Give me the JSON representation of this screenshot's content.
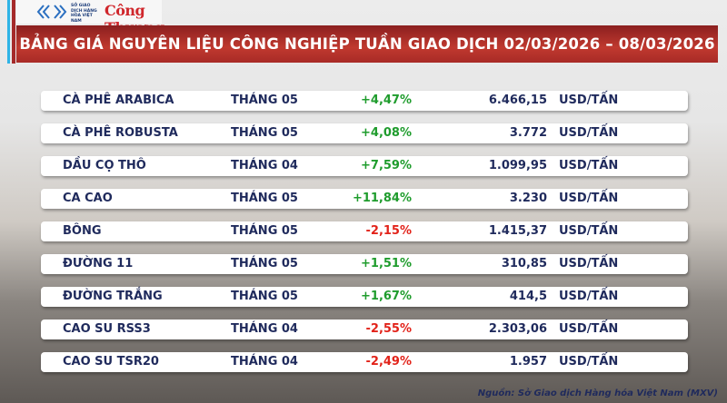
{
  "logo": {
    "exchange_name": "SỞ GIAO DỊCH HÀNG HÓA VIỆT NAM",
    "brand": "Công Thương"
  },
  "title": "BẢNG GIÁ NGUYÊN LIỆU CÔNG NGHIỆP TUẦN GIAO DỊCH 02/03/2026 – 08/03/2026",
  "colors": {
    "up": "#1f9c2d",
    "down": "#e2231a",
    "banner": "#b3302b",
    "text": "#1f2a5c"
  },
  "rows": [
    {
      "name": "CÀ PHÊ ARABICA",
      "month": "THÁNG 05",
      "change": "+4,47%",
      "direction": "up",
      "price": "6.466,15",
      "unit": "USD/TẤN"
    },
    {
      "name": "CÀ PHÊ ROBUSTA",
      "month": "THÁNG 05",
      "change": "+4,08%",
      "direction": "up",
      "price": "3.772",
      "unit": "USD/TẤN"
    },
    {
      "name": "DẦU CỌ THÔ",
      "month": "THÁNG 04",
      "change": "+7,59%",
      "direction": "up",
      "price": "1.099,95",
      "unit": "USD/TẤN"
    },
    {
      "name": "CA CAO",
      "month": "THÁNG 05",
      "change": "+11,84%",
      "direction": "up",
      "price": "3.230",
      "unit": "USD/TẤN"
    },
    {
      "name": "BÔNG",
      "month": "THÁNG 05",
      "change": "-2,15%",
      "direction": "down",
      "price": "1.415,37",
      "unit": "USD/TẤN"
    },
    {
      "name": "ĐƯỜNG 11",
      "month": "THÁNG 05",
      "change": "+1,51%",
      "direction": "up",
      "price": "310,85",
      "unit": "USD/TẤN"
    },
    {
      "name": "ĐƯỜNG TRẮNG",
      "month": "THÁNG 05",
      "change": "+1,67%",
      "direction": "up",
      "price": "414,5",
      "unit": "USD/TẤN"
    },
    {
      "name": "CAO SU RSS3",
      "month": "THÁNG 04",
      "change": "-2,55%",
      "direction": "down",
      "price": "2.303,06",
      "unit": "USD/TẤN"
    },
    {
      "name": "CAO SU TSR20",
      "month": "THÁNG 04",
      "change": "-2,49%",
      "direction": "down",
      "price": "1.957",
      "unit": "USD/TẤN"
    }
  ],
  "source": "Nguồn: Sở Giao dịch Hàng hóa Việt Nam (MXV)"
}
